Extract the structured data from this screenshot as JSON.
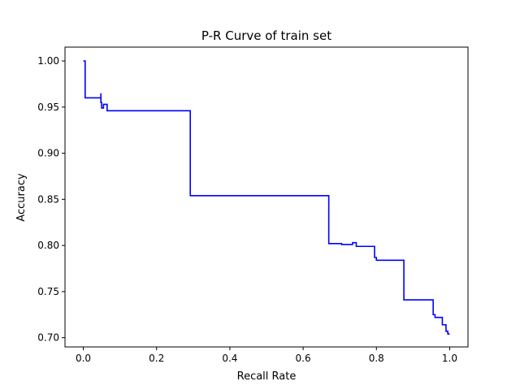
{
  "chart_data": {
    "type": "line",
    "title": "P-R Curve of train set",
    "xlabel": "Recall Rate",
    "ylabel": "Accuracy",
    "xlim": [
      -0.05,
      1.05
    ],
    "ylim": [
      0.69,
      1.015
    ],
    "xticks": [
      0.0,
      0.2,
      0.4,
      0.6,
      0.8,
      1.0
    ],
    "xtick_labels": [
      "0.0",
      "0.2",
      "0.4",
      "0.6",
      "0.8",
      "1.0"
    ],
    "yticks": [
      0.7,
      0.75,
      0.8,
      0.85,
      0.9,
      0.95,
      1.0
    ],
    "ytick_labels": [
      "0.70",
      "0.75",
      "0.80",
      "0.85",
      "0.90",
      "0.95",
      "1.00"
    ],
    "grid": false,
    "series": [
      {
        "color": "#0000ff",
        "drawstyle": "steps",
        "points": [
          [
            0.0,
            1.0
          ],
          [
            0.005,
            1.0
          ],
          [
            0.005,
            0.96
          ],
          [
            0.048,
            0.96
          ],
          [
            0.048,
            0.965
          ],
          [
            0.048,
            0.955
          ],
          [
            0.05,
            0.955
          ],
          [
            0.05,
            0.949
          ],
          [
            0.055,
            0.949
          ],
          [
            0.055,
            0.953
          ],
          [
            0.065,
            0.953
          ],
          [
            0.065,
            0.946
          ],
          [
            0.292,
            0.946
          ],
          [
            0.292,
            0.854
          ],
          [
            0.67,
            0.854
          ],
          [
            0.67,
            0.802
          ],
          [
            0.705,
            0.802
          ],
          [
            0.705,
            0.801
          ],
          [
            0.735,
            0.801
          ],
          [
            0.735,
            0.803
          ],
          [
            0.745,
            0.803
          ],
          [
            0.745,
            0.799
          ],
          [
            0.795,
            0.799
          ],
          [
            0.795,
            0.787
          ],
          [
            0.8,
            0.787
          ],
          [
            0.8,
            0.784
          ],
          [
            0.875,
            0.784
          ],
          [
            0.875,
            0.741
          ],
          [
            0.955,
            0.741
          ],
          [
            0.955,
            0.725
          ],
          [
            0.96,
            0.725
          ],
          [
            0.96,
            0.722
          ],
          [
            0.98,
            0.722
          ],
          [
            0.98,
            0.714
          ],
          [
            0.99,
            0.714
          ],
          [
            0.99,
            0.707
          ],
          [
            0.995,
            0.707
          ],
          [
            0.995,
            0.704
          ],
          [
            1.0,
            0.704
          ]
        ]
      }
    ]
  }
}
